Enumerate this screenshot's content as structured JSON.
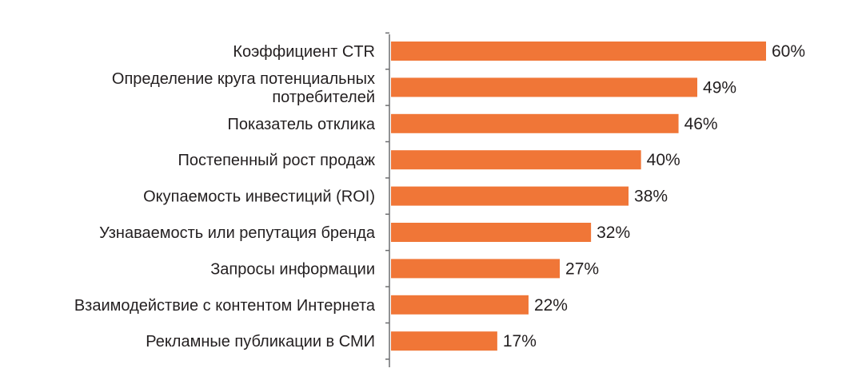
{
  "chart_data": {
    "type": "bar",
    "orientation": "horizontal",
    "title": "",
    "xlabel": "",
    "ylabel": "",
    "grid": false,
    "xlim": [
      0,
      60
    ],
    "value_suffix": "%",
    "bar_color": "#f07637",
    "categories": [
      [
        "Коэффициент CTR"
      ],
      [
        "Определение круга потенциальных",
        "потребителей"
      ],
      [
        "Показатель отклика"
      ],
      [
        "Постепенный рост продаж"
      ],
      [
        "Окупаемость инвестиций (ROI)"
      ],
      [
        "Узнаваемость или репутация бренда"
      ],
      [
        "Запросы информации"
      ],
      [
        "Взаимодействие с контентом Интернета"
      ],
      [
        "Рекламные публикации в СМИ"
      ]
    ],
    "values": [
      60,
      49,
      46,
      40,
      38,
      32,
      27,
      22,
      17
    ]
  }
}
